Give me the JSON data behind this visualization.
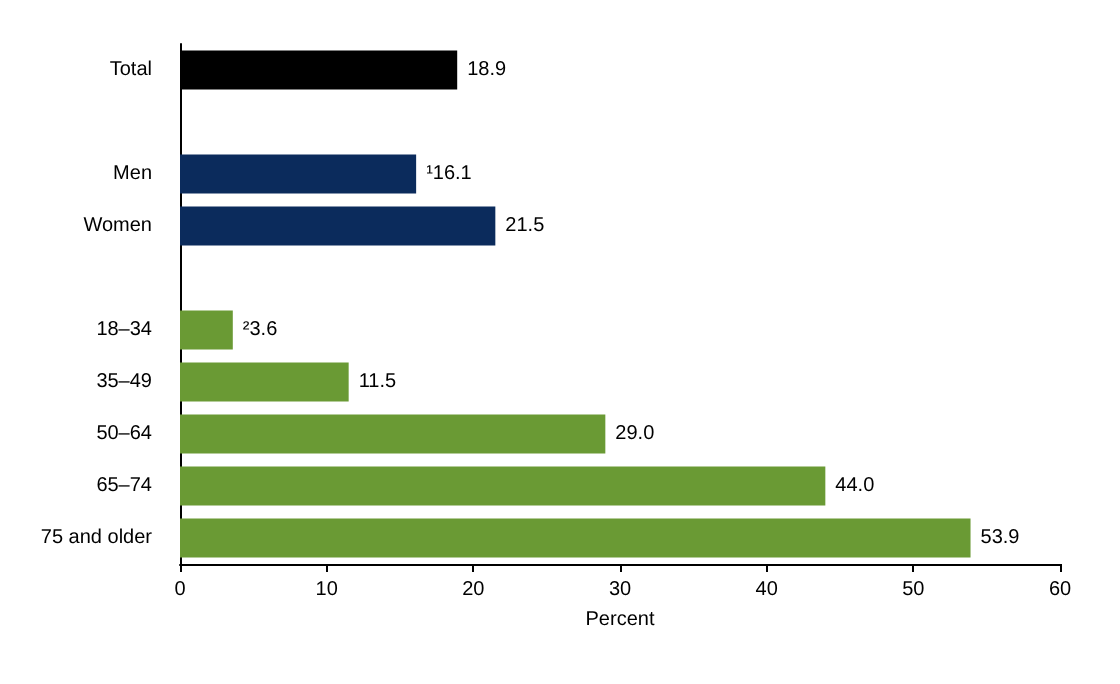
{
  "chart_data": {
    "type": "bar",
    "orientation": "horizontal",
    "xlabel": "Percent",
    "categories": [
      "Total",
      null,
      "Men",
      "Women",
      null,
      "18–34",
      "35–49",
      "50–64",
      "65–74",
      "75 and older"
    ],
    "values": [
      18.9,
      null,
      16.1,
      21.5,
      null,
      3.6,
      11.5,
      29.0,
      44.0,
      53.9
    ],
    "colors": [
      "#000000",
      null,
      "#0b2b5c",
      "#0b2b5c",
      null,
      "#6a9a34",
      "#6a9a34",
      "#6a9a34",
      "#6a9a34",
      "#6a9a34"
    ],
    "value_labels": [
      "18.9",
      null,
      "¹16.1",
      "21.5",
      null,
      "²3.6",
      "11.5",
      "29.0",
      "44.0",
      "53.9"
    ],
    "xlim": [
      0,
      60
    ],
    "xticks": [
      0,
      10,
      20,
      30,
      40,
      50,
      60
    ],
    "grid": false
  }
}
